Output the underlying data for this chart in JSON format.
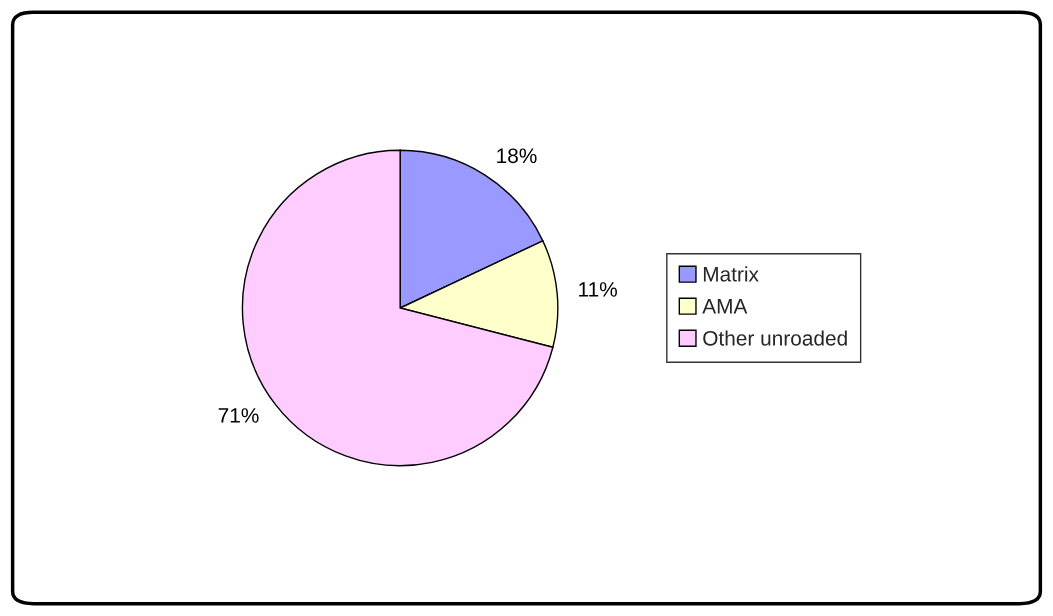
{
  "chart_data": {
    "type": "pie",
    "categories": [
      "Matrix",
      "AMA",
      "Other unroaded"
    ],
    "values": [
      18,
      11,
      71
    ],
    "value_labels": [
      "18%",
      "11%",
      "71%"
    ],
    "colors": [
      "#9999ff",
      "#ffffcc",
      "#ffccff"
    ],
    "legend": "right"
  }
}
